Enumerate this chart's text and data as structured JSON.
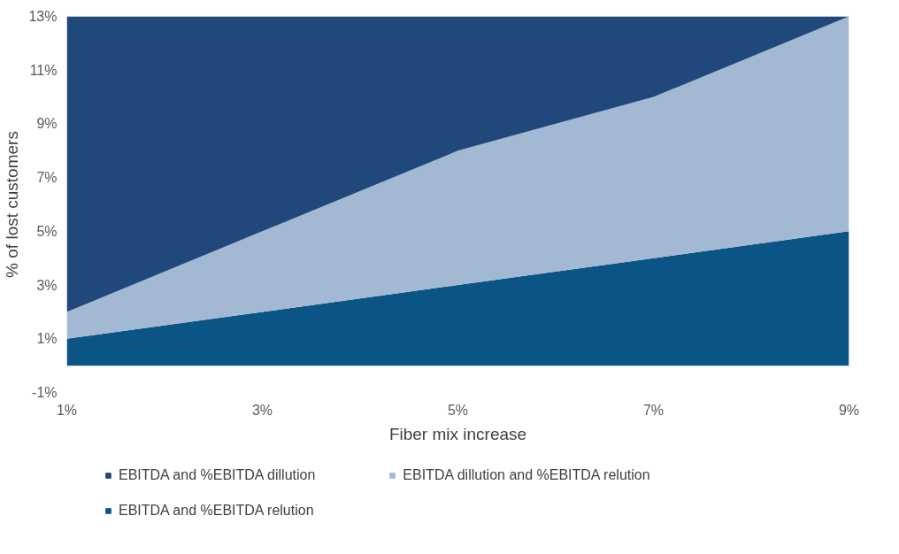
{
  "chart_data": {
    "type": "area",
    "stacked": true,
    "xlabel": "Fiber mix increase",
    "ylabel": "% of lost customers",
    "categories": [
      "1%",
      "3%",
      "5%",
      "7%",
      "9%"
    ],
    "series": [
      {
        "name": "EBITDA and %EBITDA relution",
        "color": "#0b5586",
        "values": [
          1,
          2,
          3,
          4,
          5
        ]
      },
      {
        "name": "EBITDA dillution and %EBITDA relution",
        "color": "#a3b8d3",
        "values": [
          1,
          3,
          5,
          6,
          8
        ]
      },
      {
        "name": "EBITDA and %EBITDA dillution",
        "color": "#20487a",
        "values": [
          11,
          8,
          5,
          3,
          0
        ]
      }
    ],
    "ylim": [
      -1,
      13
    ],
    "yticks": [
      {
        "value": -1,
        "label": "-1%"
      },
      {
        "value": 1,
        "label": "1%"
      },
      {
        "value": 3,
        "label": "3%"
      },
      {
        "value": 5,
        "label": "5%"
      },
      {
        "value": 7,
        "label": "7%"
      },
      {
        "value": 9,
        "label": "9%"
      },
      {
        "value": 11,
        "label": "11%"
      },
      {
        "value": 13,
        "label": "13%"
      }
    ],
    "grid": false,
    "legend": "bottom"
  }
}
